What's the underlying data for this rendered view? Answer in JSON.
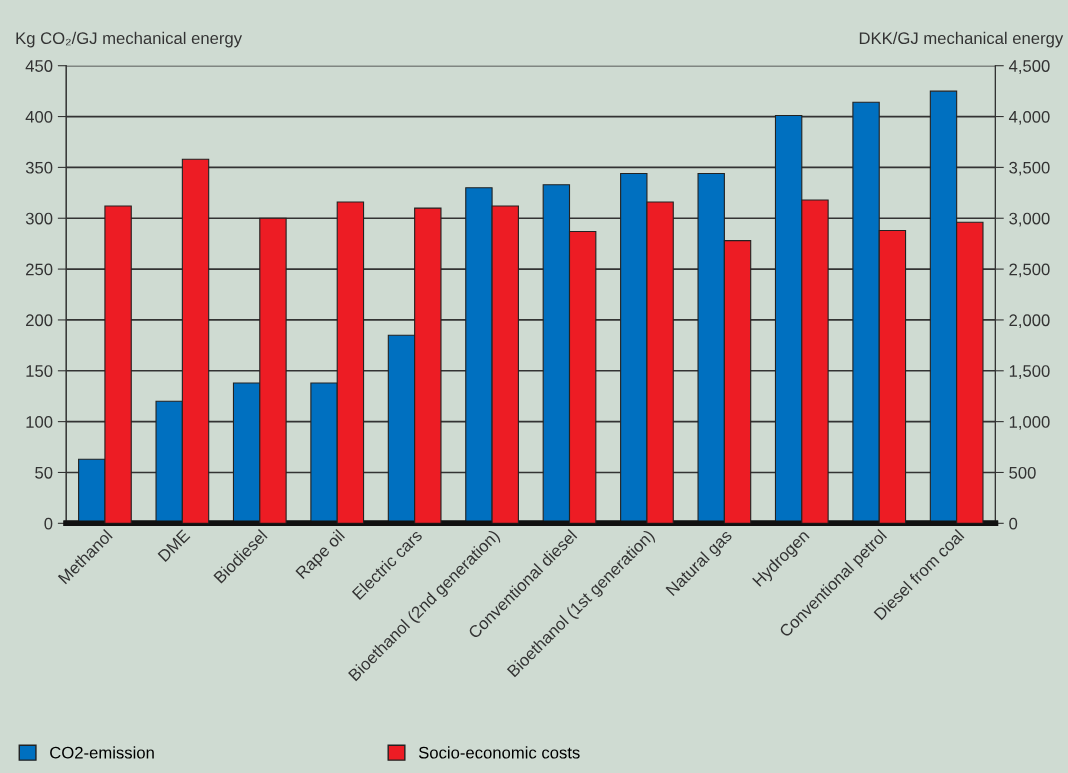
{
  "chart_data": {
    "type": "bar",
    "ylabel": "Kg CO₂/GJ mechanical energy",
    "y2label": "DKK/GJ mechanical energy",
    "categories": [
      "Methanol",
      "DME",
      "Biodiesel",
      "Rape oil",
      "Electric cars",
      "Bioethanol (2nd generation)",
      "Conventional diesel",
      "Bioethanol (1st generation)",
      "Natural gas",
      "Hydrogen",
      "Conventional petrol",
      "Diesel from coal"
    ],
    "series": [
      {
        "name": "CO2-emission",
        "color": "#0070c0",
        "values": [
          63,
          120,
          138,
          138,
          185,
          330,
          333,
          344,
          344,
          401,
          414,
          425
        ]
      },
      {
        "name": "Socio-economic costs",
        "color": "#ed1c24",
        "axis": "y2",
        "values": [
          3120,
          3580,
          3000,
          3160,
          3100,
          3120,
          2870,
          3160,
          2780,
          3180,
          2880,
          2960
        ]
      }
    ],
    "ylim": [
      0,
      450
    ],
    "yticks": [
      0,
      50,
      100,
      150,
      200,
      250,
      300,
      350,
      400,
      450
    ],
    "y2lim": [
      0,
      4500
    ],
    "y2ticks": [
      0,
      {
        "value": 500,
        "label": "500"
      },
      {
        "value": 1000,
        "label": "1,000"
      },
      {
        "value": 1500,
        "label": "1,500"
      },
      {
        "value": 2000,
        "label": "2,000"
      },
      {
        "value": 2500,
        "label": "2,500"
      },
      {
        "value": 3000,
        "label": "3,000"
      },
      {
        "value": 3500,
        "label": "3,500"
      },
      {
        "value": 4000,
        "label": "4,000"
      },
      {
        "value": 4500,
        "label": "4,500"
      }
    ],
    "grid": "y",
    "legend": "bottom"
  }
}
